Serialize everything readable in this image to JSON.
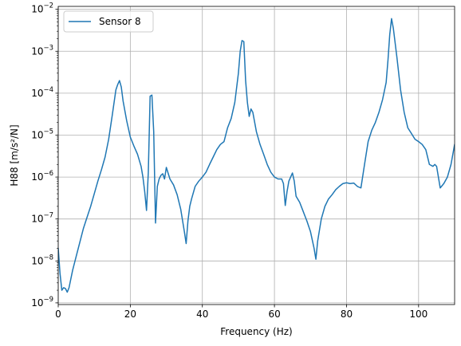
{
  "chart_data": {
    "type": "line",
    "title": "",
    "xlabel": "Frequency (Hz)",
    "ylabel": "H88 [m/s²/N]",
    "xlim": [
      0,
      110
    ],
    "ylim_exponents": [
      -9.04,
      -1.93
    ],
    "yscale": "log",
    "grid": true,
    "legend_position": "top-left",
    "x_ticks": [
      0,
      20,
      40,
      60,
      80,
      100
    ],
    "y_ticks": [
      {
        "exp": -9,
        "base": "10",
        "power": "−9"
      },
      {
        "exp": -8,
        "base": "10",
        "power": "−8"
      },
      {
        "exp": -7,
        "base": "10",
        "power": "−7"
      },
      {
        "exp": -6,
        "base": "10",
        "power": "−6"
      },
      {
        "exp": -5,
        "base": "10",
        "power": "−5"
      },
      {
        "exp": -4,
        "base": "10",
        "power": "−4"
      },
      {
        "exp": -3,
        "base": "10",
        "power": "−3"
      },
      {
        "exp": -2,
        "base": "10",
        "power": "−2"
      }
    ],
    "series": [
      {
        "name": "Sensor 8",
        "color": "#1f77b4",
        "x": [
          0,
          0.5,
          1,
          1.5,
          2,
          2.5,
          3,
          4,
          5,
          6,
          7,
          8,
          9,
          10,
          11,
          12,
          13,
          14,
          15,
          16,
          16.5,
          17,
          17.5,
          18,
          19,
          20,
          21,
          22,
          23,
          23.5,
          24,
          24.5,
          25,
          25.5,
          26,
          26.5,
          27,
          27.5,
          28,
          28.5,
          29,
          29.5,
          30,
          31,
          32,
          33,
          34,
          35,
          35.5,
          36,
          36.5,
          37,
          38,
          39,
          40,
          41,
          42,
          43,
          44,
          45,
          46,
          47,
          48,
          49,
          50,
          50.5,
          51,
          51.5,
          52,
          52.5,
          53,
          53.5,
          54,
          55,
          56,
          57,
          58,
          59,
          60,
          61,
          62,
          62.5,
          63,
          63.5,
          64,
          65,
          65.5,
          66,
          67,
          68,
          69,
          70,
          71,
          71.5,
          72,
          73,
          74,
          75,
          76,
          77,
          78,
          79,
          80,
          81,
          82,
          83,
          84,
          85,
          86,
          87,
          88,
          89,
          90,
          91,
          91.5,
          92,
          92.5,
          93,
          94,
          95,
          96,
          97,
          98,
          99,
          100,
          101,
          102,
          102.5,
          103,
          104,
          104.5,
          105,
          105.5,
          106,
          107,
          108,
          109,
          110
        ],
        "y": [
          2e-08,
          5e-09,
          2e-09,
          2.3e-09,
          2.2e-09,
          1.8e-09,
          2.3e-09,
          6e-09,
          1.3e-08,
          2.8e-08,
          6e-08,
          1.1e-07,
          2e-07,
          4e-07,
          8e-07,
          1.5e-06,
          3e-06,
          8e-06,
          3e-05,
          0.00012,
          0.00016,
          0.0002,
          0.00014,
          6.5e-05,
          2.2e-05,
          9e-06,
          5.5e-06,
          3.5e-06,
          1.8e-06,
          1e-06,
          4.5e-07,
          1.6e-07,
          1.3e-06,
          8.5e-05,
          9e-05,
          1.2e-05,
          8e-08,
          6e-07,
          9e-07,
          1.1e-06,
          1.2e-06,
          9e-07,
          1.7e-06,
          9e-07,
          6.5e-07,
          3.8e-07,
          1.7e-07,
          5e-08,
          2.6e-08,
          9e-08,
          2e-07,
          3e-07,
          6e-07,
          8e-07,
          1e-06,
          1.3e-06,
          2e-06,
          3e-06,
          4.5e-06,
          6e-06,
          7e-06,
          1.5e-05,
          2.5e-05,
          6e-05,
          0.0003,
          0.001,
          0.0018,
          0.0017,
          0.0002,
          6e-05,
          2.8e-05,
          4.2e-05,
          3.5e-05,
          1.2e-05,
          6e-06,
          3.5e-06,
          2e-06,
          1.3e-06,
          1e-06,
          9e-07,
          9e-07,
          7e-07,
          2.1e-07,
          4.5e-07,
          8e-07,
          1.25e-06,
          8e-07,
          3.5e-07,
          2.5e-07,
          1.5e-07,
          9e-08,
          5e-08,
          2e-08,
          1.1e-08,
          3e-08,
          1e-07,
          2e-07,
          3e-07,
          3.8e-07,
          5e-07,
          6e-07,
          7e-07,
          7.3e-07,
          7e-07,
          7.2e-07,
          6e-07,
          5.5e-07,
          2e-06,
          7e-06,
          1.3e-05,
          2e-05,
          3.5e-05,
          7e-05,
          0.00018,
          0.0006,
          0.0025,
          0.006,
          0.0035,
          0.0007,
          0.00012,
          3.5e-05,
          1.5e-05,
          1.1e-05,
          8e-06,
          7e-06,
          6e-06,
          4.5e-06,
          3e-06,
          2e-06,
          1.8e-06,
          2e-06,
          1.8e-06,
          1e-06,
          5.5e-07,
          7e-07,
          1e-06,
          2e-06,
          6e-06
        ]
      }
    ]
  }
}
